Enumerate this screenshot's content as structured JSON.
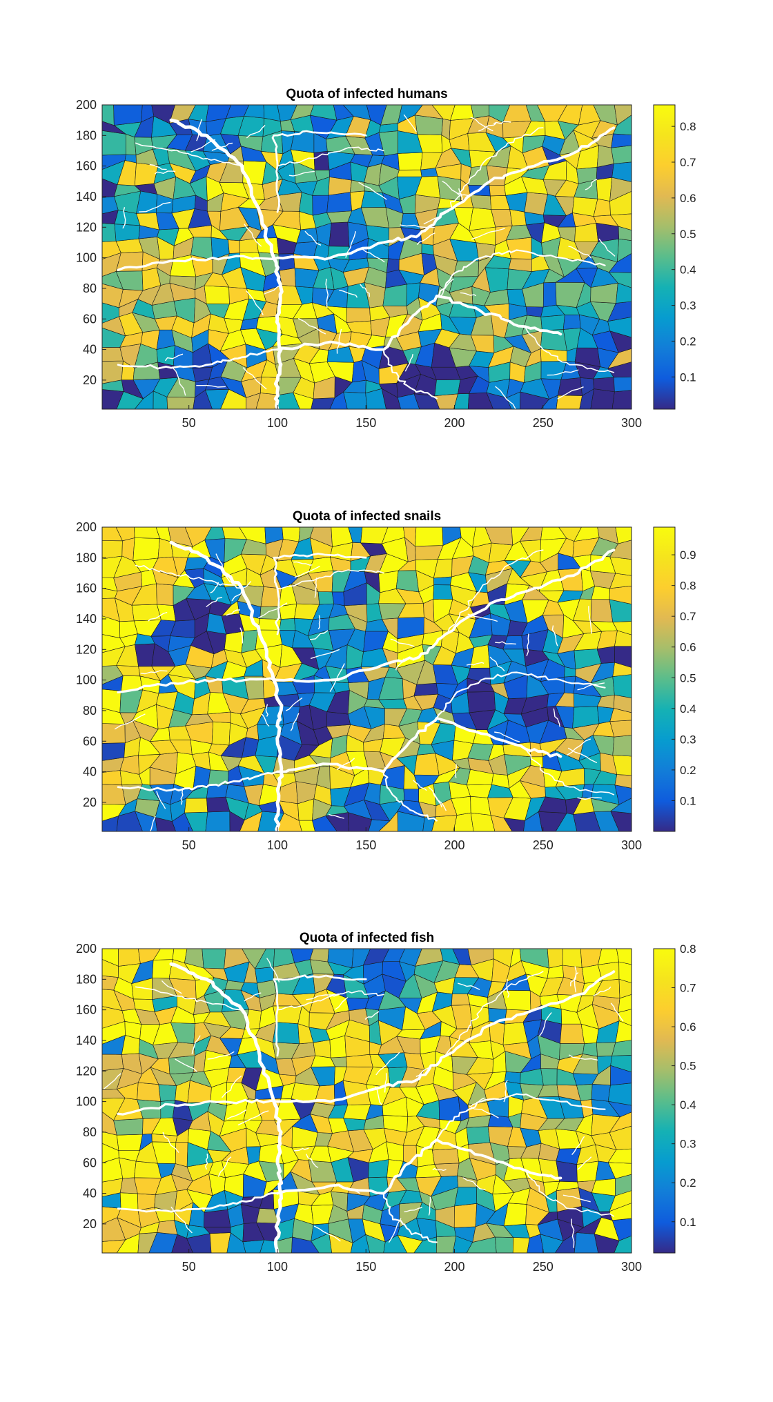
{
  "chart_data": [
    {
      "type": "heatmap",
      "title": "Quota of infected humans",
      "xlim": [
        1,
        300
      ],
      "ylim": [
        1,
        200
      ],
      "xticks": [
        50,
        100,
        150,
        200,
        250,
        300
      ],
      "yticks": [
        20,
        40,
        60,
        80,
        100,
        120,
        140,
        160,
        180,
        200
      ],
      "colorbar": {
        "range": [
          0.01,
          0.86
        ],
        "ticks": [
          0.1,
          0.2,
          0.3,
          0.4,
          0.5,
          0.6,
          0.7,
          0.8
        ]
      },
      "colormap": "parula",
      "regions": [
        {
          "x": 50,
          "y": 100,
          "v": 0.72
        },
        {
          "x": 75,
          "y": 130,
          "v": 0.74
        },
        {
          "x": 90,
          "y": 30,
          "v": 0.7
        },
        {
          "x": 130,
          "y": 50,
          "v": 0.75
        },
        {
          "x": 160,
          "y": 60,
          "v": 0.72
        },
        {
          "x": 200,
          "y": 140,
          "v": 0.7
        },
        {
          "x": 240,
          "y": 120,
          "v": 0.65
        },
        {
          "x": 260,
          "y": 170,
          "v": 0.62
        },
        {
          "x": 270,
          "y": 20,
          "v": 0.1
        },
        {
          "x": 220,
          "y": 15,
          "v": 0.08
        },
        {
          "x": 60,
          "y": 15,
          "v": 0.1
        },
        {
          "x": 160,
          "y": 15,
          "v": 0.12
        },
        {
          "x": 20,
          "y": 60,
          "v": 0.55
        },
        {
          "x": 40,
          "y": 140,
          "v": 0.2
        },
        {
          "x": 140,
          "y": 150,
          "v": 0.3
        },
        {
          "x": 140,
          "y": 90,
          "v": 0.15
        },
        {
          "x": 200,
          "y": 90,
          "v": 0.45
        },
        {
          "x": 260,
          "y": 70,
          "v": 0.3
        },
        {
          "x": 110,
          "y": 170,
          "v": 0.2
        },
        {
          "x": 230,
          "y": 40,
          "v": 0.62
        }
      ]
    },
    {
      "type": "heatmap",
      "title": "Quota of infected snails",
      "xlim": [
        1,
        300
      ],
      "ylim": [
        1,
        200
      ],
      "xticks": [
        50,
        100,
        150,
        200,
        250,
        300
      ],
      "yticks": [
        20,
        40,
        60,
        80,
        100,
        120,
        140,
        160,
        180,
        200
      ],
      "colorbar": {
        "range": [
          0.0,
          0.99
        ],
        "ticks": [
          0.1,
          0.2,
          0.3,
          0.4,
          0.5,
          0.6,
          0.7,
          0.8,
          0.9
        ]
      },
      "colormap": "parula",
      "regions": [
        {
          "x": 20,
          "y": 160,
          "v": 0.95
        },
        {
          "x": 60,
          "y": 80,
          "v": 0.85
        },
        {
          "x": 80,
          "y": 110,
          "v": 0.95
        },
        {
          "x": 30,
          "y": 40,
          "v": 0.9
        },
        {
          "x": 140,
          "y": 50,
          "v": 0.88
        },
        {
          "x": 200,
          "y": 30,
          "v": 0.92
        },
        {
          "x": 240,
          "y": 40,
          "v": 0.9
        },
        {
          "x": 180,
          "y": 130,
          "v": 0.95
        },
        {
          "x": 270,
          "y": 170,
          "v": 0.9
        },
        {
          "x": 100,
          "y": 190,
          "v": 0.82
        },
        {
          "x": 150,
          "y": 130,
          "v": 0.2
        },
        {
          "x": 220,
          "y": 110,
          "v": 0.15
        },
        {
          "x": 250,
          "y": 80,
          "v": 0.1
        },
        {
          "x": 120,
          "y": 80,
          "v": 0.12
        },
        {
          "x": 60,
          "y": 140,
          "v": 0.1
        },
        {
          "x": 280,
          "y": 60,
          "v": 0.6
        },
        {
          "x": 170,
          "y": 90,
          "v": 0.5
        },
        {
          "x": 40,
          "y": 15,
          "v": 0.2
        },
        {
          "x": 160,
          "y": 10,
          "v": 0.08
        },
        {
          "x": 260,
          "y": 10,
          "v": 0.1
        }
      ]
    },
    {
      "type": "heatmap",
      "title": "Quota of infected fish",
      "xlim": [
        1,
        300
      ],
      "ylim": [
        1,
        200
      ],
      "xticks": [
        50,
        100,
        150,
        200,
        250,
        300
      ],
      "yticks": [
        20,
        40,
        60,
        80,
        100,
        120,
        140,
        160,
        180,
        200
      ],
      "colorbar": {
        "range": [
          0.02,
          0.8
        ],
        "ticks": [
          0.1,
          0.2,
          0.3,
          0.4,
          0.5,
          0.6,
          0.7,
          0.8
        ]
      },
      "colormap": "parula",
      "regions": [
        {
          "x": 20,
          "y": 160,
          "v": 0.75
        },
        {
          "x": 60,
          "y": 80,
          "v": 0.78
        },
        {
          "x": 80,
          "y": 110,
          "v": 0.8
        },
        {
          "x": 30,
          "y": 40,
          "v": 0.72
        },
        {
          "x": 140,
          "y": 60,
          "v": 0.76
        },
        {
          "x": 200,
          "y": 140,
          "v": 0.74
        },
        {
          "x": 240,
          "y": 40,
          "v": 0.78
        },
        {
          "x": 280,
          "y": 170,
          "v": 0.78
        },
        {
          "x": 120,
          "y": 150,
          "v": 0.7
        },
        {
          "x": 180,
          "y": 90,
          "v": 0.72
        },
        {
          "x": 260,
          "y": 10,
          "v": 0.08
        },
        {
          "x": 60,
          "y": 10,
          "v": 0.1
        },
        {
          "x": 150,
          "y": 20,
          "v": 0.3
        },
        {
          "x": 220,
          "y": 20,
          "v": 0.35
        },
        {
          "x": 270,
          "y": 120,
          "v": 0.3
        },
        {
          "x": 100,
          "y": 190,
          "v": 0.4
        },
        {
          "x": 160,
          "y": 180,
          "v": 0.25
        },
        {
          "x": 40,
          "y": 120,
          "v": 0.55
        },
        {
          "x": 230,
          "y": 80,
          "v": 0.6
        },
        {
          "x": 290,
          "y": 60,
          "v": 0.8
        }
      ]
    }
  ]
}
